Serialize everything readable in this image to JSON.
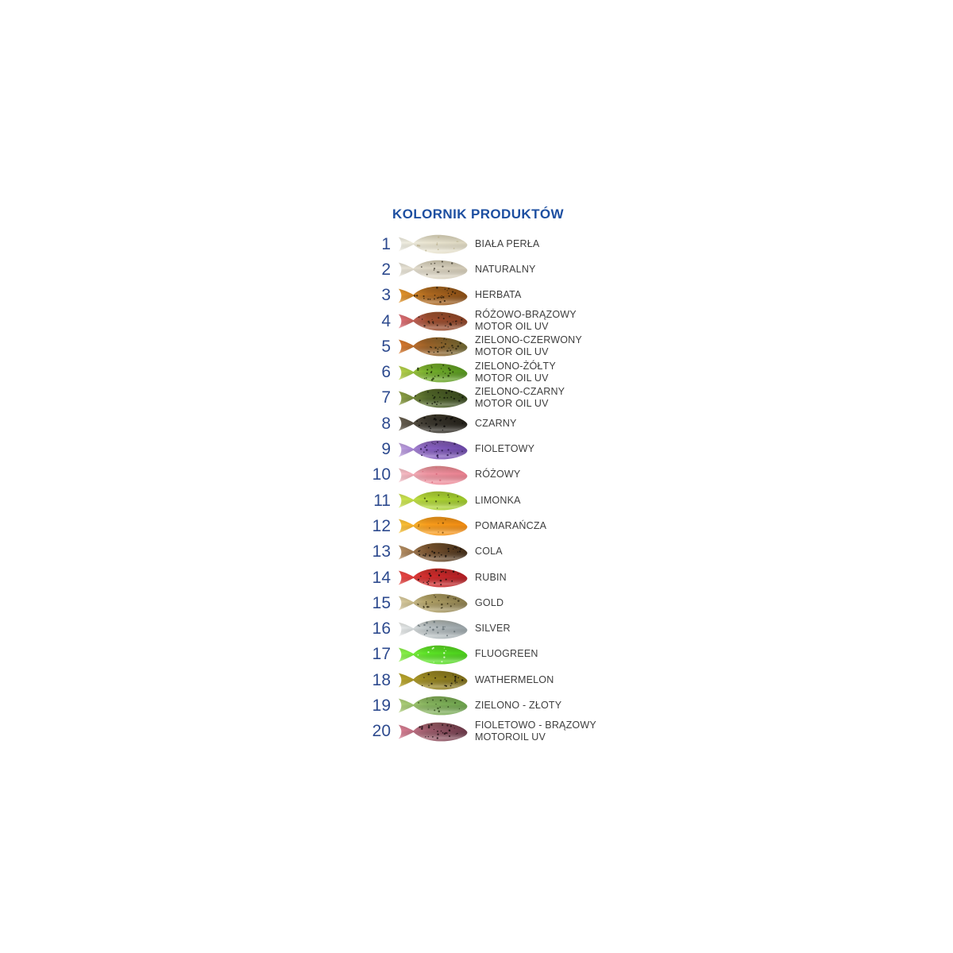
{
  "title": "KOLORNIK PRODUKTÓW",
  "colors": {
    "title_blue": "#1d4fa1",
    "number_blue": "#2e4b8f",
    "label_gray": "#3d3d3d",
    "background": "#ffffff"
  },
  "rows": [
    {
      "number": "1",
      "label": "BIAŁA PERŁA",
      "color_name": "biala-perla",
      "gradient": [
        "#f0efe4",
        "#ebe6d2",
        "#ddd7c1"
      ],
      "speckle": "#bdb492",
      "speckle_count": 10
    },
    {
      "number": "2",
      "label": "NATURALNY",
      "color_name": "naturalny",
      "gradient": [
        "#e9e5d9",
        "#ddd6c4",
        "#d1c9b5"
      ],
      "speckle": "#4a4438",
      "speckle_count": 12
    },
    {
      "number": "3",
      "label": "HERBATA",
      "color_name": "herbata",
      "gradient": [
        "#e8992c",
        "#b06a20",
        "#8a4e16"
      ],
      "speckle": "#33200a",
      "speckle_count": 26
    },
    {
      "number": "4",
      "label": "RÓŻOWO-BRĄZOWY\nMOTOR OIL UV",
      "color_name": "rozowo-brazowy",
      "gradient": [
        "#e4717e",
        "#a04f30",
        "#8a4226"
      ],
      "speckle": "#2e1a10",
      "speckle_count": 26
    },
    {
      "number": "5",
      "label": "ZIELONO-CZERWONY\nMOTOR OIL UV",
      "color_name": "zielono-czerwony",
      "gradient": [
        "#dd7a2e",
        "#9c6228",
        "#6e6430"
      ],
      "speckle": "#2c2410",
      "speckle_count": 26
    },
    {
      "number": "6",
      "label": "ZIELONO-ŻÓŁTY\nMOTOR OIL UV",
      "color_name": "zielono-zolty",
      "gradient": [
        "#bcd44e",
        "#76b02c",
        "#55941f"
      ],
      "speckle": "#243a08",
      "speckle_count": 24
    },
    {
      "number": "7",
      "label": "ZIELONO-CZARNY\nMOTOR OIL UV",
      "color_name": "zielono-czarny",
      "gradient": [
        "#93a648",
        "#52682a",
        "#36471d"
      ],
      "speckle": "#141a0a",
      "speckle_count": 26
    },
    {
      "number": "8",
      "label": "CZARNY",
      "color_name": "czarny",
      "gradient": [
        "#6a6152",
        "#3b372e",
        "#232019"
      ],
      "speckle": "#0c0b08",
      "speckle_count": 24
    },
    {
      "number": "9",
      "label": "FIOLETOWY",
      "color_name": "fioletowy",
      "gradient": [
        "#c3a7e3",
        "#8a62c4",
        "#6c48a8"
      ],
      "speckle": "#2c1a4e",
      "speckle_count": 24
    },
    {
      "number": "10",
      "label": "RÓŻOWY",
      "color_name": "rozowy",
      "gradient": [
        "#f6c3cb",
        "#f095a2",
        "#ea8190"
      ],
      "speckle": "#d86a7c",
      "speckle_count": 8
    },
    {
      "number": "11",
      "label": "LIMONKA",
      "color_name": "limonka",
      "gradient": [
        "#cfe455",
        "#b1d736",
        "#9cc72a"
      ],
      "speckle": "#3c4a10",
      "speckle_count": 10
    },
    {
      "number": "12",
      "label": "POMARAŃCZA",
      "color_name": "pomarancza",
      "gradient": [
        "#f9c53a",
        "#f99d1c",
        "#f18c12"
      ],
      "speckle": "#7a4a08",
      "speckle_count": 8
    },
    {
      "number": "13",
      "label": "COLA",
      "color_name": "cola",
      "gradient": [
        "#bb9468",
        "#7c5530",
        "#46301a"
      ],
      "speckle": "#17100a",
      "speckle_count": 26
    },
    {
      "number": "14",
      "label": "RUBIN",
      "color_name": "rubin",
      "gradient": [
        "#ea4a48",
        "#d22c2c",
        "#b21e24"
      ],
      "speckle": "#1e0c0c",
      "speckle_count": 22
    },
    {
      "number": "15",
      "label": "GOLD",
      "color_name": "gold",
      "gradient": [
        "#dccfa6",
        "#b2a267",
        "#8c7e4e"
      ],
      "speckle": "#3c3418",
      "speckle_count": 24
    },
    {
      "number": "16",
      "label": "SILVER",
      "color_name": "silver",
      "gradient": [
        "#eceeee",
        "#bcc4c6",
        "#9aa4a8"
      ],
      "speckle": "#647074",
      "speckle_count": 18
    },
    {
      "number": "17",
      "label": "FLUOGREEN",
      "color_name": "fluogreen",
      "gradient": [
        "#90f24e",
        "#5ce426",
        "#4cd01c"
      ],
      "speckle": "#eaffdf",
      "speckle_count": 10
    },
    {
      "number": "18",
      "label": "WATHERMELON",
      "color_name": "wathermelon",
      "gradient": [
        "#bca82c",
        "#9a8822",
        "#7e6e1a"
      ],
      "speckle": "#1c180a",
      "speckle_count": 22
    },
    {
      "number": "19",
      "label": "ZIELONO - ZŁOTY",
      "color_name": "zielono-zloty",
      "gradient": [
        "#b2d27c",
        "#86b45e",
        "#6ea44e"
      ],
      "speckle": "#35501e",
      "speckle_count": 16
    },
    {
      "number": "20",
      "label": "FIOLETOWO - BRĄZOWY\nMOTOROIL UV",
      "color_name": "fioletowo-brazowy",
      "gradient": [
        "#dd8096",
        "#9e5c6c",
        "#6e3a4a"
      ],
      "speckle": "#241016",
      "speckle_count": 28
    }
  ]
}
